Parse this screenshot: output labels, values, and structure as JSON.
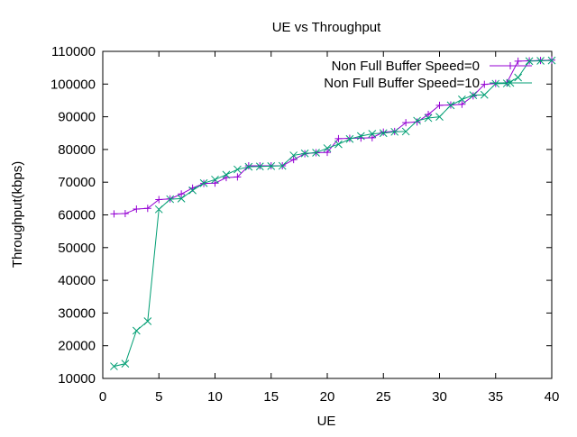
{
  "chart_data": {
    "type": "line",
    "title": "UE vs Throughput",
    "xlabel": "UE",
    "ylabel": "Throughput(kbps)",
    "xlim": [
      0,
      40
    ],
    "ylim": [
      10000,
      110000
    ],
    "xticks": [
      0,
      5,
      10,
      15,
      20,
      25,
      30,
      35,
      40
    ],
    "yticks": [
      10000,
      20000,
      30000,
      40000,
      50000,
      60000,
      70000,
      80000,
      90000,
      100000,
      110000
    ],
    "grid": false,
    "legend": "top-right",
    "series": [
      {
        "name": "Non Full Buffer Speed=0",
        "color": "#9400d3",
        "marker": "plus",
        "x": [
          1,
          2,
          3,
          4,
          5,
          6,
          7,
          8,
          9,
          10,
          11,
          12,
          13,
          14,
          15,
          16,
          17,
          18,
          19,
          20,
          21,
          22,
          23,
          24,
          25,
          26,
          27,
          28,
          29,
          30,
          31,
          32,
          33,
          34,
          35,
          36,
          37,
          38,
          39,
          40
        ],
        "y": [
          60300,
          60400,
          61800,
          62000,
          64700,
          64900,
          66400,
          68200,
          69600,
          69700,
          71400,
          71600,
          75000,
          75000,
          75000,
          75000,
          76900,
          78700,
          79000,
          79100,
          83300,
          83400,
          83500,
          83600,
          85300,
          85500,
          88200,
          88400,
          90700,
          93500,
          93600,
          93800,
          96400,
          99900,
          100200,
          100400,
          107000,
          107100,
          107200,
          107300
        ]
      },
      {
        "name": "Non Full Buffer Speed=10",
        "color": "#009e73",
        "marker": "cross",
        "x": [
          1,
          2,
          3,
          4,
          5,
          6,
          7,
          8,
          9,
          10,
          11,
          12,
          13,
          14,
          15,
          16,
          17,
          18,
          19,
          20,
          21,
          22,
          23,
          24,
          25,
          26,
          27,
          28,
          29,
          30,
          31,
          32,
          33,
          34,
          35,
          36,
          37,
          38,
          39,
          40
        ],
        "y": [
          13700,
          14500,
          24600,
          27500,
          61700,
          64800,
          65000,
          67500,
          69700,
          70800,
          72300,
          73900,
          74700,
          74800,
          74900,
          75000,
          78200,
          78800,
          79000,
          80400,
          81600,
          83200,
          84100,
          84800,
          85000,
          85400,
          85500,
          88800,
          89600,
          90000,
          93500,
          95300,
          96600,
          96700,
          100100,
          100200,
          102000,
          107000,
          107100,
          107200
        ]
      }
    ]
  }
}
